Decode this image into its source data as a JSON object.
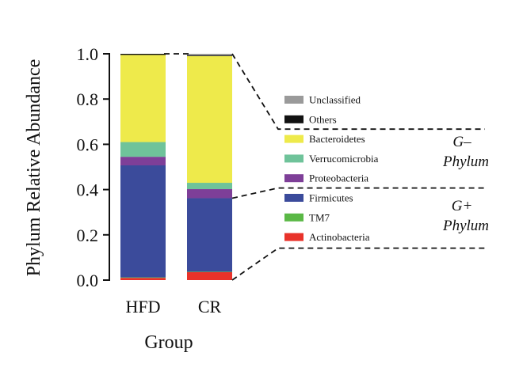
{
  "chart_data": {
    "type": "bar",
    "stacked": true,
    "xlabel": "Group",
    "ylabel": "Phylum Relative Abundance",
    "ylim": [
      0,
      1.0
    ],
    "yticks": [
      "0.0",
      "0.2",
      "0.4",
      "0.6",
      "0.8",
      "1.0"
    ],
    "categories": [
      "HFD",
      "CR"
    ],
    "series": [
      {
        "name": "Actinobacteria",
        "color": "#e8322a",
        "values": [
          0.01,
          0.035
        ]
      },
      {
        "name": "TM7",
        "color": "#5ab846",
        "values": [
          0.002,
          0.002
        ]
      },
      {
        "name": "Firmicutes",
        "color": "#3b4b9b",
        "values": [
          0.495,
          0.325
        ]
      },
      {
        "name": "Proteobacteria",
        "color": "#7e3f98",
        "values": [
          0.038,
          0.04
        ]
      },
      {
        "name": "Verrucomicrobia",
        "color": "#6fc39a",
        "values": [
          0.065,
          0.028
        ]
      },
      {
        "name": "Bacteroidetes",
        "color": "#eeea4b",
        "values": [
          0.385,
          0.56
        ]
      },
      {
        "name": "Others",
        "color": "#111111",
        "values": [
          0.005,
          0.004
        ]
      },
      {
        "name": "Unclassified",
        "color": "#9a9a9a",
        "values": [
          0.0,
          0.006
        ]
      }
    ],
    "legend_order": [
      "Unclassified",
      "Others",
      "Bacteroidetes",
      "Verrucomicrobia",
      "Proteobacteria",
      "Firmicutes",
      "TM7",
      "Actinobacteria"
    ],
    "annotations": [
      {
        "line1": "G–",
        "line2": "Phylum"
      },
      {
        "line1": "G+",
        "line2": "Phylum"
      }
    ]
  }
}
